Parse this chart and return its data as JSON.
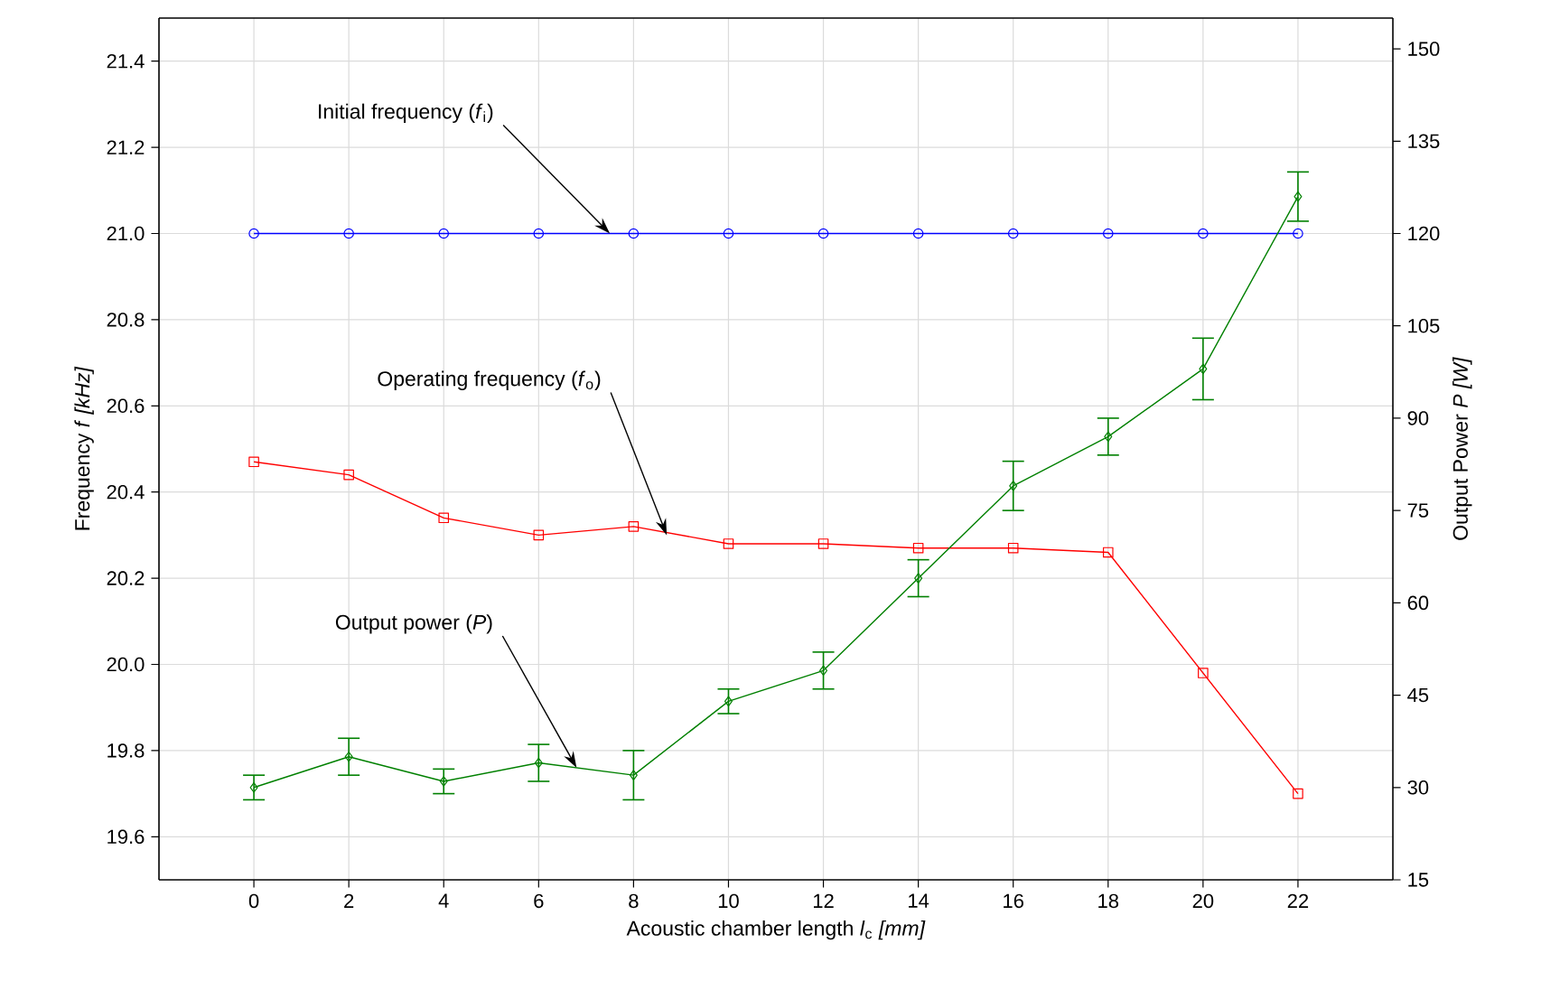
{
  "chart_data": {
    "type": "line",
    "xlabel": "Acoustic chamber length *l*$_{c}$ *[mm]*",
    "ylabel": "Frequency *f* *[kHz]*",
    "y2label": "Output Power *P* *[W]*",
    "x": [
      0,
      2,
      4,
      6,
      8,
      10,
      12,
      14,
      16,
      18,
      20,
      22
    ],
    "xlim": [
      -2,
      24
    ],
    "xticks": [
      0,
      2,
      4,
      6,
      8,
      10,
      12,
      14,
      16,
      18,
      20,
      22
    ],
    "ylim": [
      19.5,
      21.5
    ],
    "yticks": [
      19.6,
      19.8,
      {
        "value": 20.0,
        "label": "20.0"
      },
      20.2,
      20.4,
      20.6,
      20.8,
      {
        "value": 21.0,
        "label": "21.0"
      },
      21.2,
      21.4
    ],
    "y2lim": [
      15,
      155
    ],
    "y2ticks": [
      15,
      30,
      45,
      60,
      75,
      90,
      105,
      120,
      135,
      150
    ],
    "grid": true,
    "series": [
      {
        "color": "#0000ff",
        "marker": "circle",
        "values": [
          21.0,
          21.0,
          21.0,
          21.0,
          21.0,
          21.0,
          21.0,
          21.0,
          21.0,
          21.0,
          21.0,
          21.0
        ]
      },
      {
        "color": "#ff0000",
        "marker": "square",
        "values": [
          20.47,
          20.44,
          20.34,
          20.3,
          20.32,
          20.28,
          20.28,
          20.27,
          20.27,
          20.26,
          19.98,
          19.7
        ]
      },
      {
        "color": "#008000",
        "marker": "diamond",
        "axis": "y2",
        "values": [
          30,
          35,
          31,
          34,
          32,
          44,
          49,
          64,
          79,
          87,
          98,
          126
        ],
        "errors": [
          2,
          3,
          2,
          3,
          4,
          2,
          3,
          3,
          4,
          3,
          5,
          4
        ]
      }
    ],
    "annotations": [
      {
        "text": "Initial frequency (*f*$_{i}$)",
        "x": 7.5,
        "y": 21.0
      },
      {
        "text": "Operating frequency (*f*$_{o}$)",
        "x": 8.7,
        "y": 20.3
      },
      {
        "text": "Output power (*P*)",
        "x": 6.8,
        "y": 19.76
      }
    ]
  }
}
